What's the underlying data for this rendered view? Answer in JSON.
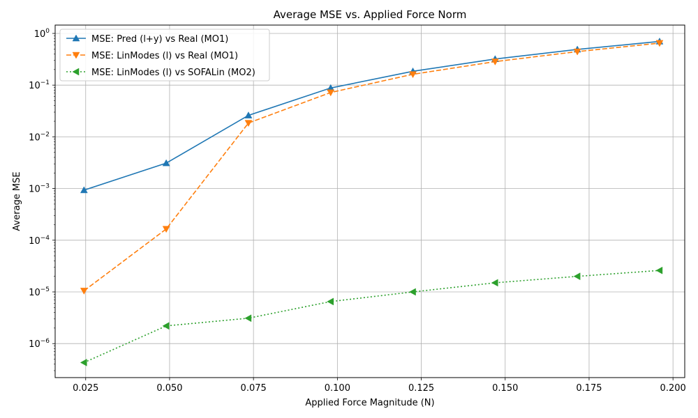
{
  "chart_data": {
    "type": "line",
    "title": "Average MSE vs. Applied Force Norm",
    "xlabel": "Applied Force Magnitude (N)",
    "ylabel": "Average MSE",
    "yscale": "log",
    "grid": true,
    "legend_position": "upper-left",
    "xlim": [
      0.0159,
      0.2035
    ],
    "ylim": [
      2.2e-07,
      1.45
    ],
    "xticks": [
      0.025,
      0.05,
      0.075,
      0.1,
      0.125,
      0.15,
      0.175,
      0.2
    ],
    "xtick_labels": [
      "0.025",
      "0.050",
      "0.075",
      "0.100",
      "0.125",
      "0.150",
      "0.175",
      "0.200"
    ],
    "yticks": [
      1e-06,
      1e-05,
      0.0001,
      0.001,
      0.01,
      0.1,
      1
    ],
    "ytick_labels": [
      {
        "base": "10",
        "exp": "−6"
      },
      {
        "base": "10",
        "exp": "−5"
      },
      {
        "base": "10",
        "exp": "−4"
      },
      {
        "base": "10",
        "exp": "−3"
      },
      {
        "base": "10",
        "exp": "−2"
      },
      {
        "base": "10",
        "exp": "−1"
      },
      {
        "base": "10",
        "exp": "0"
      }
    ],
    "x": [
      0.0245,
      0.049,
      0.0735,
      0.098,
      0.1225,
      0.147,
      0.1715,
      0.196
    ],
    "series": [
      {
        "name": "MSE: Pred (l+y) vs Real (MO1)",
        "color": "#1f77b4",
        "linestyle": "solid",
        "marker": "triangle-up",
        "values": [
          0.00093,
          0.0031,
          0.026,
          0.088,
          0.185,
          0.32,
          0.49,
          0.7
        ]
      },
      {
        "name": "MSE: LinModes (l) vs Real (MO1)",
        "color": "#ff7f0e",
        "linestyle": "dashed",
        "marker": "triangle-down",
        "values": [
          1.05e-05,
          0.000165,
          0.0185,
          0.072,
          0.162,
          0.285,
          0.445,
          0.65
        ]
      },
      {
        "name": "MSE: LinModes (l) vs SOFALin (MO2)",
        "color": "#2ca02c",
        "linestyle": "dotted",
        "marker": "triangle-left",
        "values": [
          4.3e-07,
          2.2e-06,
          3.1e-06,
          6.5e-06,
          1e-05,
          1.5e-05,
          2e-05,
          2.6e-05
        ]
      }
    ]
  }
}
